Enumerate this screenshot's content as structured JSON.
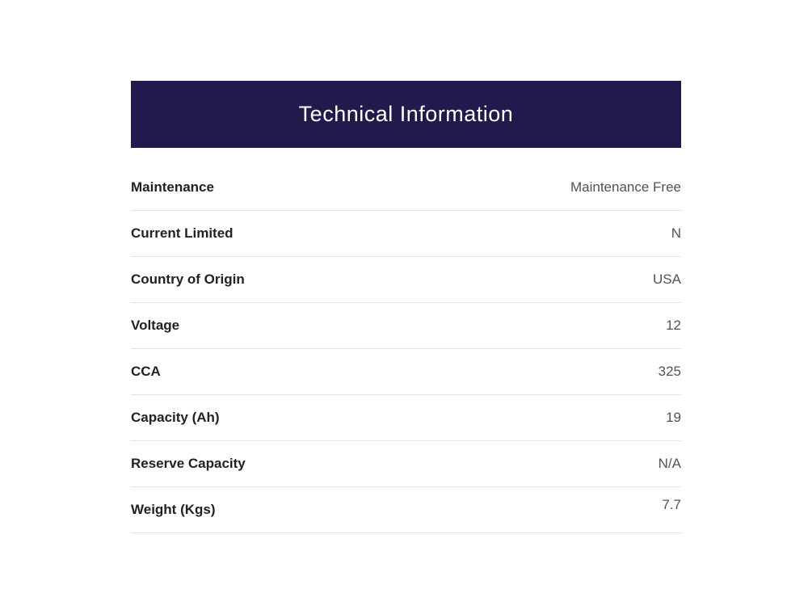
{
  "header": {
    "title": "Technical Information",
    "background_color": "#211a4d",
    "text_color": "#ffffff"
  },
  "table": {
    "rows": [
      {
        "label": "Maintenance",
        "value": "Maintenance Free"
      },
      {
        "label": "Current Limited",
        "value": "N"
      },
      {
        "label": "Country of Origin",
        "value": "USA"
      },
      {
        "label": "Voltage",
        "value": "12"
      },
      {
        "label": "CCA",
        "value": "325"
      },
      {
        "label": "Capacity (Ah)",
        "value": "19"
      },
      {
        "label": "Reserve Capacity",
        "value": "N/A"
      },
      {
        "label": "Weight (Kgs)",
        "value": "7.7"
      }
    ],
    "label_color": "#222222",
    "value_color": "#525252",
    "divider_color": "#e4e4e4"
  }
}
